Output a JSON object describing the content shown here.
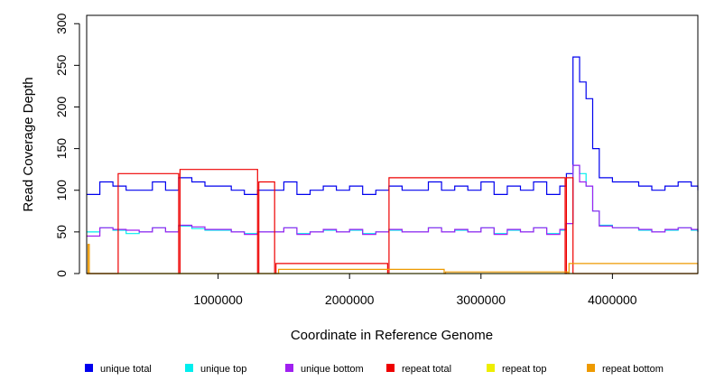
{
  "chart_data": {
    "type": "line",
    "xlabel": "Coordinate in Reference Genome",
    "ylabel": "Read Coverage Depth",
    "xlim": [
      0,
      4650000
    ],
    "ylim": [
      0,
      310
    ],
    "x_ticks": [
      1000000,
      2000000,
      3000000,
      4000000
    ],
    "x_tick_labels": [
      "1000000",
      "2000000",
      "3000000",
      "4000000"
    ],
    "y_ticks": [
      0,
      50,
      100,
      150,
      200,
      250,
      300
    ],
    "y_tick_labels": [
      "0",
      "50",
      "100",
      "150",
      "200",
      "250",
      "300"
    ],
    "grid": false,
    "legend_position": "bottom",
    "series": [
      {
        "name": "unique total",
        "color": "#0000ee",
        "x": [
          0,
          100000,
          200000,
          300000,
          400000,
          500000,
          600000,
          700000,
          800000,
          900000,
          1000000,
          1100000,
          1200000,
          1300000,
          1400000,
          1500000,
          1600000,
          1700000,
          1800000,
          1900000,
          2000000,
          2100000,
          2200000,
          2300000,
          2400000,
          2500000,
          2600000,
          2700000,
          2800000,
          2900000,
          3000000,
          3100000,
          3200000,
          3300000,
          3400000,
          3500000,
          3600000,
          3650000,
          3700000,
          3750000,
          3800000,
          3850000,
          3900000,
          4000000,
          4100000,
          4200000,
          4300000,
          4400000,
          4500000,
          4600000,
          4650000
        ],
        "values": [
          95,
          110,
          105,
          100,
          100,
          110,
          100,
          115,
          110,
          105,
          105,
          100,
          95,
          100,
          100,
          110,
          95,
          100,
          105,
          100,
          105,
          95,
          100,
          105,
          100,
          100,
          110,
          100,
          105,
          100,
          110,
          95,
          105,
          100,
          110,
          95,
          105,
          120,
          260,
          230,
          210,
          150,
          115,
          110,
          110,
          105,
          100,
          105,
          110,
          105,
          100
        ]
      },
      {
        "name": "unique top",
        "color": "#00eeee",
        "x": [
          0,
          100000,
          200000,
          300000,
          400000,
          500000,
          600000,
          700000,
          800000,
          900000,
          1000000,
          1100000,
          1200000,
          1300000,
          1400000,
          1500000,
          1600000,
          1700000,
          1800000,
          1900000,
          2000000,
          2100000,
          2200000,
          2300000,
          2400000,
          2500000,
          2600000,
          2700000,
          2800000,
          2900000,
          3000000,
          3100000,
          3200000,
          3300000,
          3400000,
          3500000,
          3600000,
          3650000,
          3700000,
          3750000,
          3800000,
          3850000,
          3900000,
          4000000,
          4100000,
          4200000,
          4300000,
          4400000,
          4500000,
          4600000,
          4650000
        ],
        "values": [
          50,
          55,
          52,
          48,
          50,
          55,
          50,
          57,
          54,
          52,
          52,
          50,
          48,
          50,
          50,
          55,
          48,
          50,
          52,
          50,
          52,
          48,
          50,
          52,
          50,
          50,
          55,
          50,
          52,
          50,
          55,
          48,
          52,
          50,
          55,
          48,
          52,
          60,
          130,
          120,
          105,
          75,
          58,
          55,
          55,
          52,
          50,
          52,
          55,
          52,
          50
        ]
      },
      {
        "name": "unique bottom",
        "color": "#a020f0",
        "x": [
          0,
          100000,
          200000,
          300000,
          400000,
          500000,
          600000,
          700000,
          800000,
          900000,
          1000000,
          1100000,
          1200000,
          1300000,
          1400000,
          1500000,
          1600000,
          1700000,
          1800000,
          1900000,
          2000000,
          2100000,
          2200000,
          2300000,
          2400000,
          2500000,
          2600000,
          2700000,
          2800000,
          2900000,
          3000000,
          3100000,
          3200000,
          3300000,
          3400000,
          3500000,
          3600000,
          3650000,
          3700000,
          3750000,
          3800000,
          3850000,
          3900000,
          4000000,
          4100000,
          4200000,
          4300000,
          4400000,
          4500000,
          4600000,
          4650000
        ],
        "values": [
          45,
          55,
          53,
          52,
          50,
          55,
          50,
          58,
          56,
          53,
          53,
          50,
          47,
          50,
          50,
          55,
          47,
          50,
          53,
          50,
          53,
          47,
          50,
          53,
          50,
          50,
          55,
          50,
          53,
          50,
          55,
          47,
          53,
          50,
          55,
          47,
          53,
          60,
          130,
          110,
          105,
          75,
          57,
          55,
          55,
          53,
          50,
          53,
          55,
          53,
          50
        ]
      },
      {
        "name": "repeat total",
        "color": "#ee0000",
        "x": [
          0,
          230000,
          240000,
          700000,
          710000,
          1300000,
          1310000,
          1430000,
          1440000,
          2290000,
          2300000,
          3640000,
          3650000,
          3700000,
          4650000
        ],
        "values": [
          0,
          0,
          120,
          0,
          125,
          0,
          110,
          0,
          12,
          0,
          115,
          0,
          115,
          0,
          0
        ]
      },
      {
        "name": "repeat top",
        "color": "#eeee00",
        "x": [
          0,
          4650000
        ],
        "values": [
          0,
          0
        ]
      },
      {
        "name": "repeat bottom",
        "color": "#ee9a00",
        "x": [
          0,
          10000,
          20000,
          1450000,
          1460000,
          2720000,
          2730000,
          3660000,
          3670000,
          4650000
        ],
        "values": [
          0,
          35,
          0,
          0,
          5,
          0,
          2,
          0,
          12,
          0
        ]
      }
    ]
  }
}
